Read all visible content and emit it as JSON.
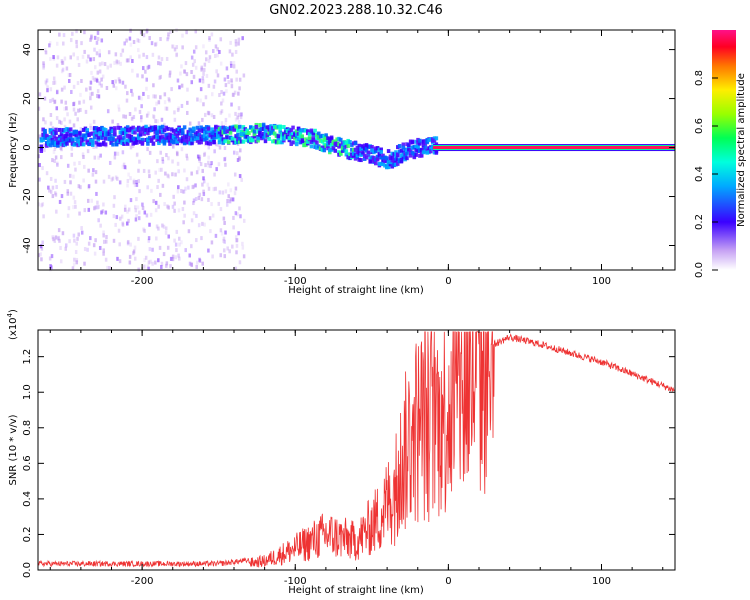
{
  "title": "GN02.2023.288.10.32.C46",
  "chart_data": [
    {
      "type": "heatmap",
      "xlabel": "Height of straight line (km)",
      "ylabel": "Frequency (Hz)",
      "xlim": [
        -268,
        148
      ],
      "ylim": [
        -50,
        48
      ],
      "xticks": [
        -200,
        -100,
        0,
        100
      ],
      "yticks": [
        -40,
        -20,
        0,
        20,
        40
      ],
      "colorbar": {
        "label": "Normalized spectral amplitude",
        "range": [
          0,
          1
        ],
        "ticks": [
          "0.0",
          "0.2",
          "0.4",
          "0.6",
          "0.8"
        ]
      },
      "ridge": [
        {
          "x": -265,
          "f": 4
        },
        {
          "x": -200,
          "f": 5
        },
        {
          "x": -150,
          "f": 5
        },
        {
          "x": -120,
          "f": 6
        },
        {
          "x": -90,
          "f": 4
        },
        {
          "x": -70,
          "f": 0
        },
        {
          "x": -50,
          "f": -3
        },
        {
          "x": -38,
          "f": -5
        },
        {
          "x": -30,
          "f": -2
        },
        {
          "x": -20,
          "f": 0
        },
        {
          "x": -5,
          "f": 1
        },
        {
          "x": 0,
          "f": 0
        },
        {
          "x": 148,
          "f": 0
        }
      ]
    },
    {
      "type": "line",
      "series": [
        {
          "values_desc": "SNR"
        }
      ],
      "xlabel": "Height of straight line (km)",
      "ylabel": "SNR (10 * v/v)",
      "y_multiplier": "(x10",
      "y_multiplier_exp": "4",
      "xlim": [
        -268,
        148
      ],
      "ylim": [
        0,
        1.35
      ],
      "xticks": [
        -200,
        -100,
        0,
        100
      ],
      "yticks": [
        "0.0",
        "0.2",
        "0.4",
        "0.6",
        "0.8",
        "1.0",
        "1.2"
      ],
      "color": "#ee3333",
      "envelope": [
        {
          "x": -268,
          "y": 0.02
        },
        {
          "x": -150,
          "y": 0.02
        },
        {
          "x": -120,
          "y": 0.05
        },
        {
          "x": -100,
          "y": 0.12
        },
        {
          "x": -80,
          "y": 0.2
        },
        {
          "x": -60,
          "y": 0.16
        },
        {
          "x": -45,
          "y": 0.3
        },
        {
          "x": -35,
          "y": 0.45
        },
        {
          "x": -25,
          "y": 0.75
        },
        {
          "x": -15,
          "y": 0.85
        },
        {
          "x": -5,
          "y": 0.88
        },
        {
          "x": 10,
          "y": 1.05
        },
        {
          "x": 25,
          "y": 1.25
        },
        {
          "x": 40,
          "y": 1.31
        },
        {
          "x": 60,
          "y": 1.27
        },
        {
          "x": 100,
          "y": 1.17
        },
        {
          "x": 148,
          "y": 1.01
        }
      ]
    }
  ]
}
